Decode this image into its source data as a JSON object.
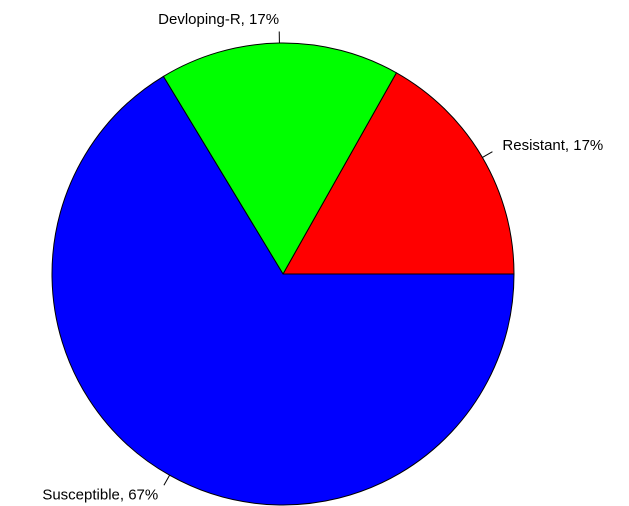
{
  "chart_data": {
    "type": "pie",
    "values": [
      17,
      17,
      67
    ],
    "value_labels": [
      "Resistant, 17%",
      "Devloping-R, 17%",
      "Susceptible, 67%"
    ],
    "colors": [
      "#ff0000",
      "#00ff00",
      "#0000ff"
    ]
  }
}
